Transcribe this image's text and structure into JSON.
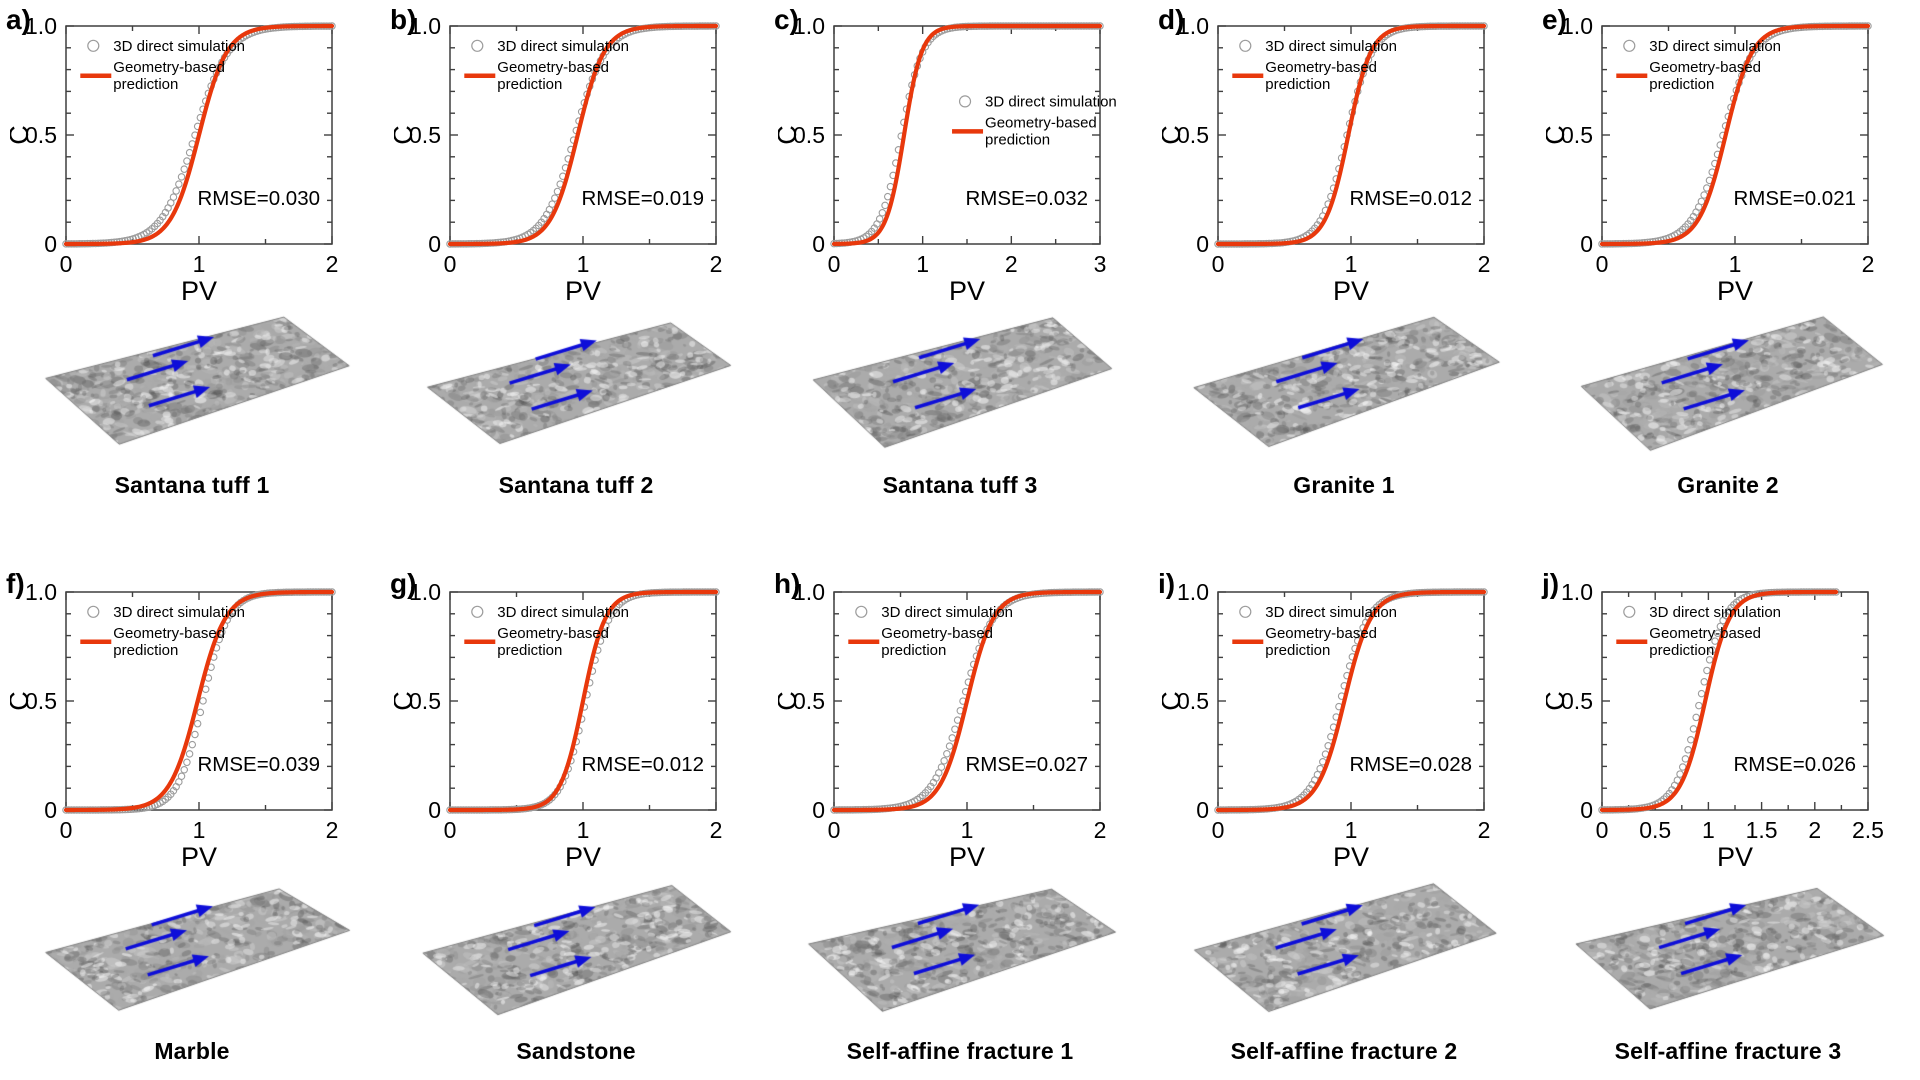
{
  "figure": {
    "axis": {
      "xlabel": "PV",
      "ylabel": "C"
    },
    "legend": {
      "sim_label": "3D direct simulation",
      "pred_label": "Geometry-based prediction",
      "pred_line1": "Geometry-based",
      "pred_line2": "prediction"
    },
    "colors": {
      "prediction_line": "#E8380C",
      "simulation_marker": "#9C9C9C",
      "axis_box": "#3F3F3F",
      "text": "#000000",
      "arrow_blue": "#0E0ED8",
      "surface_gray": "#ABABAB"
    }
  },
  "chart_data": [
    {
      "id": "a",
      "letter": "a)",
      "title": "Santana tuff 1",
      "type": "line+scatter",
      "xlabel": "PV",
      "ylabel": "C",
      "xlim": [
        0,
        2
      ],
      "ylim": [
        0,
        1
      ],
      "xticks": [
        0,
        1,
        2
      ],
      "xtick_labels": [
        "0",
        "1",
        "2"
      ],
      "xminor_step": 0.5,
      "yticks": [
        0,
        0.5,
        1
      ],
      "ytick_labels": [
        "0",
        "0.5",
        "1.0"
      ],
      "yminor_step": 0.1,
      "rmse": 0.03,
      "annotation": "RMSE=0.030",
      "legend_pos": {
        "fx": 0.05,
        "fy": 0.045
      },
      "series": [
        {
          "name": "3D direct simulation",
          "style": "open-circles",
          "model": "logistic",
          "x0": 0.97,
          "k": 0.125,
          "x_end": 2.0
        },
        {
          "name": "Geometry-based prediction",
          "style": "line",
          "model": "logistic",
          "x0": 1.0,
          "k": 0.105,
          "x_end": 2.0
        }
      ]
    },
    {
      "id": "b",
      "letter": "b)",
      "title": "Santana tuff 2",
      "type": "line+scatter",
      "xlabel": "PV",
      "ylabel": "C",
      "xlim": [
        0,
        2
      ],
      "ylim": [
        0,
        1
      ],
      "xticks": [
        0,
        1,
        2
      ],
      "xtick_labels": [
        "0",
        "1",
        "2"
      ],
      "xminor_step": 0.5,
      "yticks": [
        0,
        0.5,
        1
      ],
      "ytick_labels": [
        "0",
        "0.5",
        "1.0"
      ],
      "yminor_step": 0.1,
      "rmse": 0.019,
      "annotation": "RMSE=0.019",
      "legend_pos": {
        "fx": 0.05,
        "fy": 0.045
      },
      "series": [
        {
          "name": "3D direct simulation",
          "style": "open-circles",
          "model": "logistic",
          "x0": 0.94,
          "k": 0.115,
          "x_end": 2.0
        },
        {
          "name": "Geometry-based prediction",
          "style": "line",
          "model": "logistic",
          "x0": 0.96,
          "k": 0.1,
          "x_end": 2.0
        }
      ]
    },
    {
      "id": "c",
      "letter": "c)",
      "title": "Santana tuff 3",
      "type": "line+scatter",
      "xlabel": "PV",
      "ylabel": "C",
      "xlim": [
        0,
        3
      ],
      "ylim": [
        0,
        1
      ],
      "xticks": [
        0,
        1,
        2,
        3
      ],
      "xtick_labels": [
        "0",
        "1",
        "2",
        "3"
      ],
      "xminor_step": 0.5,
      "yticks": [
        0,
        0.5,
        1
      ],
      "ytick_labels": [
        "0",
        "0.5",
        "1.0"
      ],
      "yminor_step": 0.1,
      "rmse": 0.032,
      "annotation": "RMSE=0.032",
      "legend_pos": {
        "fx": 0.44,
        "fy": 0.3
      },
      "series": [
        {
          "name": "3D direct simulation",
          "style": "open-circles",
          "model": "logistic",
          "x0": 0.76,
          "k": 0.12,
          "x_end": 3.0
        },
        {
          "name": "Geometry-based prediction",
          "style": "line",
          "model": "logistic",
          "x0": 0.79,
          "k": 0.1,
          "x_end": 3.0
        }
      ]
    },
    {
      "id": "d",
      "letter": "d)",
      "title": "Granite 1",
      "type": "line+scatter",
      "xlabel": "PV",
      "ylabel": "C",
      "xlim": [
        0,
        2
      ],
      "ylim": [
        0,
        1
      ],
      "xticks": [
        0,
        1,
        2
      ],
      "xtick_labels": [
        "0",
        "1",
        "2"
      ],
      "xminor_step": 0.5,
      "yticks": [
        0,
        0.5,
        1
      ],
      "ytick_labels": [
        "0",
        "0.5",
        "1.0"
      ],
      "yminor_step": 0.1,
      "rmse": 0.012,
      "annotation": "RMSE=0.012",
      "legend_pos": {
        "fx": 0.05,
        "fy": 0.045
      },
      "series": [
        {
          "name": "3D direct simulation",
          "style": "open-circles",
          "model": "logistic",
          "x0": 0.97,
          "k": 0.095,
          "x_end": 2.0
        },
        {
          "name": "Geometry-based prediction",
          "style": "line",
          "model": "logistic",
          "x0": 0.98,
          "k": 0.085,
          "x_end": 2.0
        }
      ]
    },
    {
      "id": "e",
      "letter": "e)",
      "title": "Granite 2",
      "type": "line+scatter",
      "xlabel": "PV",
      "ylabel": "C",
      "xlim": [
        0,
        2
      ],
      "ylim": [
        0,
        1
      ],
      "xticks": [
        0,
        1,
        2
      ],
      "xtick_labels": [
        "0",
        "1",
        "2"
      ],
      "xminor_step": 0.5,
      "yticks": [
        0,
        0.5,
        1
      ],
      "ytick_labels": [
        "0",
        "0.5",
        "1.0"
      ],
      "yminor_step": 0.1,
      "rmse": 0.021,
      "annotation": "RMSE=0.021",
      "legend_pos": {
        "fx": 0.05,
        "fy": 0.045
      },
      "series": [
        {
          "name": "3D direct simulation",
          "style": "open-circles",
          "model": "logistic",
          "x0": 0.91,
          "k": 0.115,
          "x_end": 2.0
        },
        {
          "name": "Geometry-based prediction",
          "style": "line",
          "model": "logistic",
          "x0": 0.93,
          "k": 0.1,
          "x_end": 2.0
        }
      ]
    },
    {
      "id": "f",
      "letter": "f)",
      "title": "Marble",
      "type": "line+scatter",
      "xlabel": "PV",
      "ylabel": "C",
      "xlim": [
        0,
        2
      ],
      "ylim": [
        0,
        1
      ],
      "xticks": [
        0,
        1,
        2
      ],
      "xtick_labels": [
        "0",
        "1",
        "2"
      ],
      "xminor_step": 0.5,
      "yticks": [
        0,
        0.5,
        1
      ],
      "ytick_labels": [
        "0",
        "0.5",
        "1.0"
      ],
      "yminor_step": 0.1,
      "rmse": 0.039,
      "annotation": "RMSE=0.039",
      "legend_pos": {
        "fx": 0.05,
        "fy": 0.045
      },
      "series": [
        {
          "name": "3D direct simulation",
          "style": "open-circles",
          "model": "logistic",
          "x0": 1.03,
          "k": 0.095,
          "x_end": 2.0
        },
        {
          "name": "Geometry-based prediction",
          "style": "line",
          "model": "logistic",
          "x0": 0.99,
          "k": 0.105,
          "x_end": 2.0
        }
      ]
    },
    {
      "id": "g",
      "letter": "g)",
      "title": "Sandstone",
      "type": "line+scatter",
      "xlabel": "PV",
      "ylabel": "C",
      "xlim": [
        0,
        2
      ],
      "ylim": [
        0,
        1
      ],
      "xticks": [
        0,
        1,
        2
      ],
      "xtick_labels": [
        "0",
        "1",
        "2"
      ],
      "xminor_step": 0.5,
      "yticks": [
        0,
        0.5,
        1
      ],
      "ytick_labels": [
        "0",
        "0.5",
        "1.0"
      ],
      "yminor_step": 0.1,
      "rmse": 0.012,
      "annotation": "RMSE=0.012",
      "legend_pos": {
        "fx": 0.05,
        "fy": 0.045
      },
      "series": [
        {
          "name": "3D direct simulation",
          "style": "open-circles",
          "model": "logistic",
          "x0": 1.02,
          "k": 0.09,
          "x_end": 2.0
        },
        {
          "name": "Geometry-based prediction",
          "style": "line",
          "model": "logistic",
          "x0": 1.0,
          "k": 0.085,
          "x_end": 2.0
        }
      ]
    },
    {
      "id": "h",
      "letter": "h)",
      "title": "Self-affine fracture 1",
      "type": "line+scatter",
      "xlabel": "PV",
      "ylabel": "C",
      "xlim": [
        0,
        2
      ],
      "ylim": [
        0,
        1
      ],
      "xticks": [
        0,
        1,
        2
      ],
      "xtick_labels": [
        "0",
        "1",
        "2"
      ],
      "xminor_step": 0.5,
      "yticks": [
        0,
        0.5,
        1
      ],
      "ytick_labels": [
        "0",
        "0.5",
        "1.0"
      ],
      "yminor_step": 0.1,
      "rmse": 0.027,
      "annotation": "RMSE=0.027",
      "legend_pos": {
        "fx": 0.05,
        "fy": 0.045
      },
      "series": [
        {
          "name": "3D direct simulation",
          "style": "open-circles",
          "model": "logistic",
          "x0": 0.97,
          "k": 0.115,
          "x_end": 2.0
        },
        {
          "name": "Geometry-based prediction",
          "style": "line",
          "model": "logistic",
          "x0": 1.0,
          "k": 0.1,
          "x_end": 2.0
        }
      ]
    },
    {
      "id": "i",
      "letter": "i)",
      "title": "Self-affine fracture 2",
      "type": "line+scatter",
      "xlabel": "PV",
      "ylabel": "C",
      "xlim": [
        0,
        2
      ],
      "ylim": [
        0,
        1
      ],
      "xticks": [
        0,
        1,
        2
      ],
      "xtick_labels": [
        "0",
        "1",
        "2"
      ],
      "xminor_step": 0.5,
      "yticks": [
        0,
        0.5,
        1
      ],
      "ytick_labels": [
        "0",
        "0.5",
        "1.0"
      ],
      "yminor_step": 0.1,
      "rmse": 0.028,
      "annotation": "RMSE=0.028",
      "legend_pos": {
        "fx": 0.05,
        "fy": 0.045
      },
      "series": [
        {
          "name": "3D direct simulation",
          "style": "open-circles",
          "model": "logistic",
          "x0": 0.92,
          "k": 0.105,
          "x_end": 2.0
        },
        {
          "name": "Geometry-based prediction",
          "style": "line",
          "model": "logistic",
          "x0": 0.95,
          "k": 0.1,
          "x_end": 2.0
        }
      ]
    },
    {
      "id": "j",
      "letter": "j)",
      "title": "Self-affine fracture 3",
      "type": "line+scatter",
      "xlabel": "PV",
      "ylabel": "C",
      "xlim": [
        0,
        2.5
      ],
      "ylim": [
        0,
        1
      ],
      "xticks": [
        0,
        0.5,
        1,
        1.5,
        2,
        2.5
      ],
      "xtick_labels": [
        "0",
        "0.5",
        "1",
        "1.5",
        "2",
        "2.5"
      ],
      "xminor_step": 0.25,
      "yticks": [
        0,
        0.5,
        1
      ],
      "ytick_labels": [
        "0",
        "0.5",
        "1.0"
      ],
      "yminor_step": 0.1,
      "rmse": 0.026,
      "annotation": "RMSE=0.026",
      "legend_pos": {
        "fx": 0.05,
        "fy": 0.045
      },
      "series": [
        {
          "name": "3D direct simulation",
          "style": "open-circles",
          "model": "logistic",
          "x0": 0.92,
          "k": 0.115,
          "x_end": 2.2
        },
        {
          "name": "Geometry-based prediction",
          "style": "line",
          "model": "logistic",
          "x0": 0.97,
          "k": 0.115,
          "x_end": 2.2
        }
      ]
    }
  ]
}
